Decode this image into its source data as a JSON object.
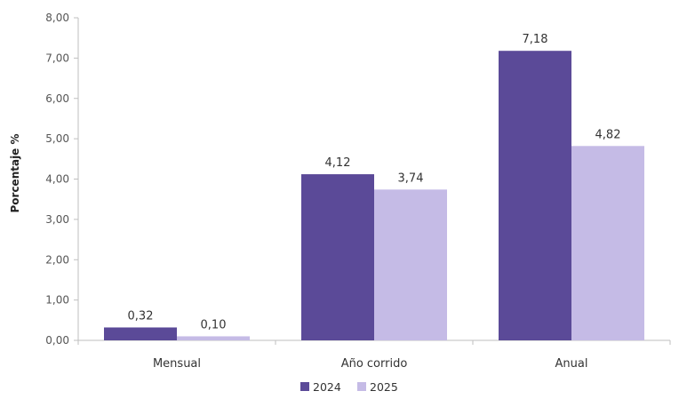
{
  "chart_data": {
    "type": "bar",
    "title": "",
    "xlabel": "",
    "ylabel": "Porcentaje %",
    "categories": [
      "Mensual",
      "Año corrido",
      "Anual"
    ],
    "series": [
      {
        "name": "2024",
        "color": "#5b4a98",
        "values": [
          0.32,
          4.12,
          7.18
        ],
        "labels": [
          "0,32",
          "4,12",
          "7,18"
        ]
      },
      {
        "name": "2025",
        "color": "#c5bbe6",
        "values": [
          0.1,
          3.74,
          4.82
        ],
        "labels": [
          "0,10",
          "3,74",
          "4,82"
        ]
      }
    ],
    "ylim": [
      0,
      8
    ],
    "yticks": [
      0,
      1,
      2,
      3,
      4,
      5,
      6,
      7,
      8
    ],
    "ytick_labels": [
      "0,00",
      "1,00",
      "2,00",
      "3,00",
      "4,00",
      "5,00",
      "6,00",
      "7,00",
      "8,00"
    ],
    "grid": false,
    "legend_position": "bottom-center",
    "axis_color": "#bfbfbf"
  }
}
